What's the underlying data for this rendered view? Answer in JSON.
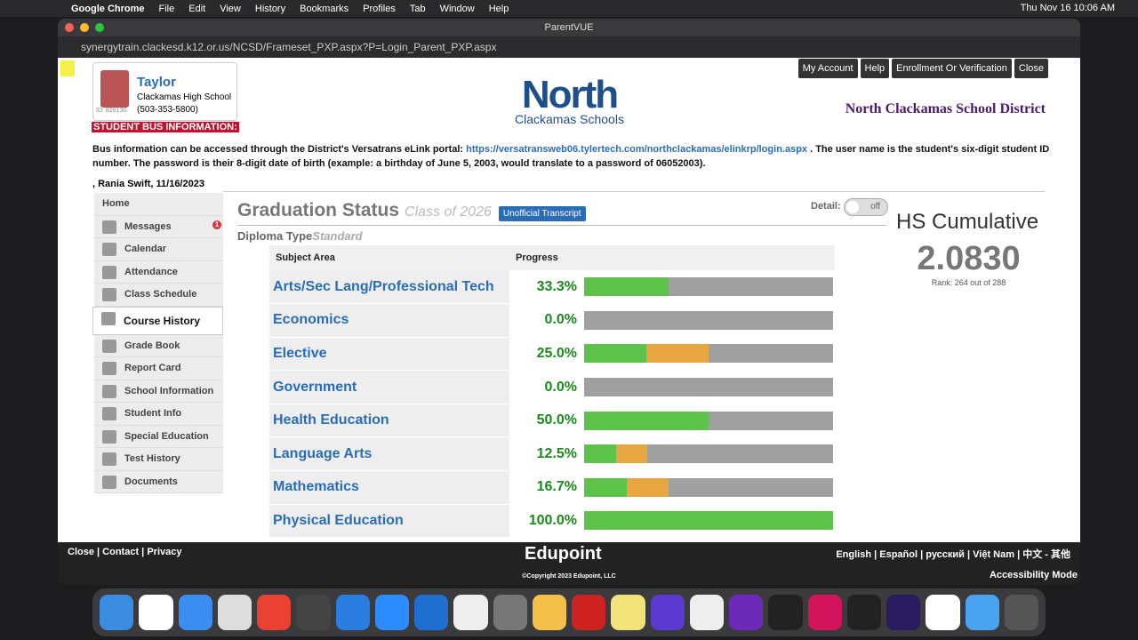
{
  "menubar": {
    "app": "Google Chrome",
    "items": [
      "File",
      "Edit",
      "View",
      "History",
      "Bookmarks",
      "Profiles",
      "Tab",
      "Window",
      "Help"
    ],
    "clock": "Thu Nov 16  10:06 AM"
  },
  "window": {
    "title": "ParentVUE",
    "url": "synergytrain.clackesd.k12.or.us/NCSD/Frameset_PXP.aspx?P=Login_Parent_PXP.aspx"
  },
  "student": {
    "name": "Taylor",
    "school": "Clackamas High School",
    "phone": "(503-353-5800)",
    "id": "ID: 826130"
  },
  "logo": {
    "line1": "North",
    "line2": "Clackamas Schools"
  },
  "district": "North Clackamas School District",
  "top_buttons": [
    "My Account",
    "Help",
    "Enrollment Or Verification",
    "Close"
  ],
  "bus": {
    "heading": "STUDENT BUS INFORMATION:",
    "text1": "Bus information can be accessed through the District's Versatrans eLink portal: ",
    "link": "https://versatransweb06.tylertech.com/northclackamas/elinkrp/login.aspx",
    "text2": " . The user name is the student's six-digit student ID number. The password is their 8-digit date of birth (example: a birthday of June 5, 2003, would translate to a password of 06052003)."
  },
  "greeting": ", Rania Swift, 11/16/2023",
  "sidebar": {
    "home": "Home",
    "items": [
      "Messages",
      "Calendar",
      "Attendance",
      "Class Schedule",
      "Course History",
      "Grade Book",
      "Report Card",
      "School Information",
      "Student Info",
      "Special Education",
      "Test History",
      "Documents"
    ],
    "messages_badge": "1",
    "active": "Course History"
  },
  "graduation": {
    "title": "Graduation Status",
    "class": "Class of 2026",
    "transcript_button": "Unofficial Transcript",
    "detail_label": "Detail:",
    "detail_toggle": "off",
    "diploma_label": "Diploma Type",
    "diploma_value": "Standard"
  },
  "cumulative": {
    "title": "HS Cumulative",
    "gpa": "2.0830",
    "rank": "Rank: 264 out of 288"
  },
  "colors": {
    "earned": "#5cc24a",
    "in_progress": "#e8a640",
    "remaining": "#a0a0a0",
    "link": "#2a6db5"
  },
  "table": {
    "headers": [
      "Subject Area",
      "Progress"
    ],
    "rows": [
      {
        "subject": "Arts/Sec Lang/Professional Tech",
        "pct": "33.3%",
        "earned": 0.34,
        "in_progress": 0
      },
      {
        "subject": "Economics",
        "pct": "0.0%",
        "earned": 0,
        "in_progress": 0
      },
      {
        "subject": "Elective",
        "pct": "25.0%",
        "earned": 0.25,
        "in_progress": 0.25
      },
      {
        "subject": "Government",
        "pct": "0.0%",
        "earned": 0,
        "in_progress": 0
      },
      {
        "subject": "Health Education",
        "pct": "50.0%",
        "earned": 0.5,
        "in_progress": 0
      },
      {
        "subject": "Language Arts",
        "pct": "12.5%",
        "earned": 0.13,
        "in_progress": 0.125
      },
      {
        "subject": "Mathematics",
        "pct": "16.7%",
        "earned": 0.17,
        "in_progress": 0.17
      },
      {
        "subject": "Physical Education",
        "pct": "100.0%",
        "earned": 1,
        "in_progress": 0
      }
    ]
  },
  "footer": {
    "left": [
      "Close",
      "Contact",
      "Privacy"
    ],
    "brand": "Edupoint",
    "copyright": "©Copyright 2023 Edupoint, LLC",
    "languages": [
      "English",
      "Español",
      "русский",
      "Việt Nam",
      "中文 - 其他"
    ],
    "accessibility": "Accessibility Mode"
  }
}
